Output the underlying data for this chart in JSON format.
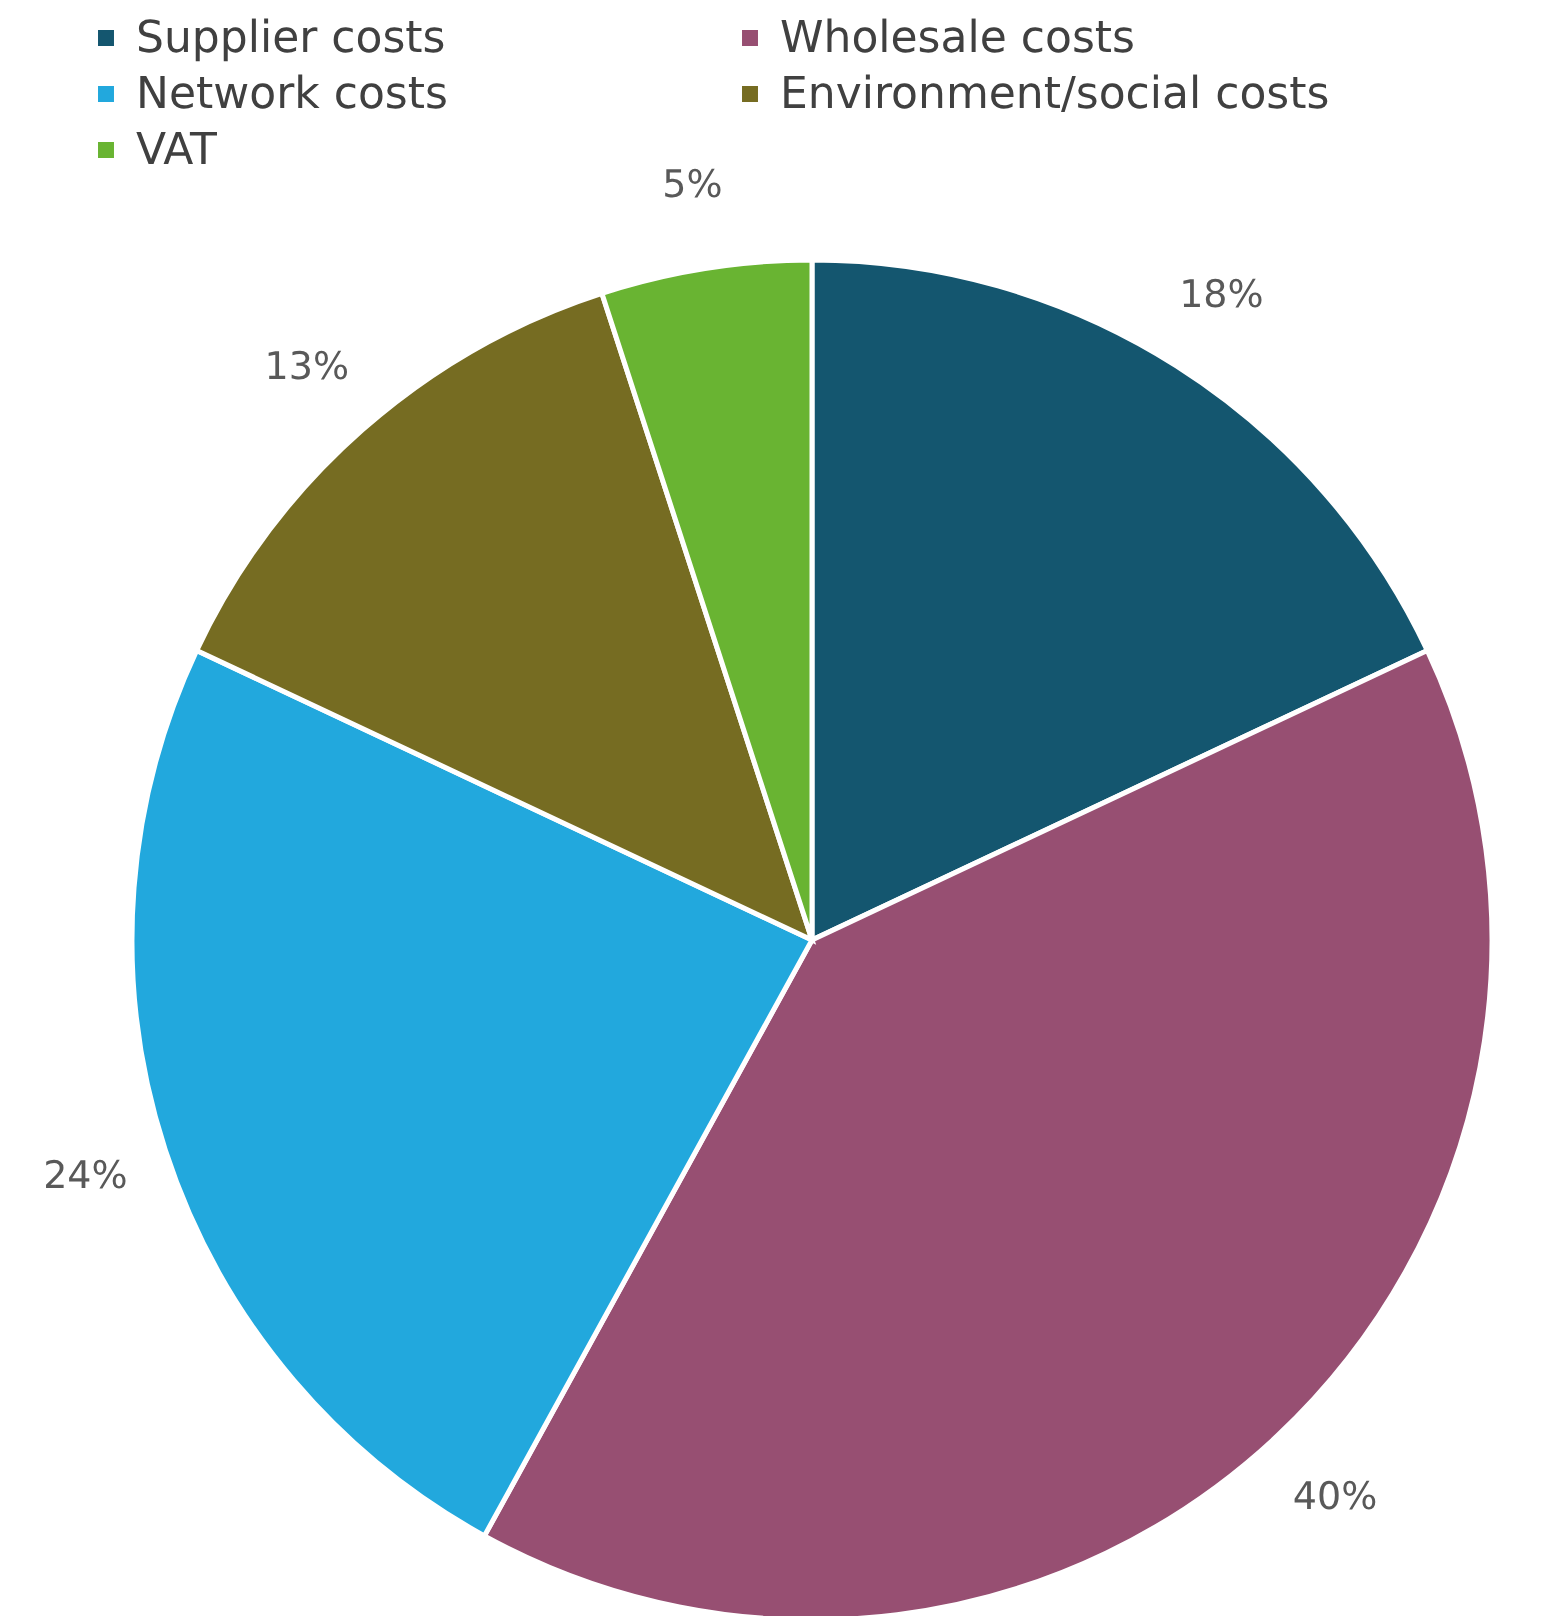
{
  "chart_data": {
    "type": "pie",
    "categories": [
      "Supplier costs",
      "Wholesale costs",
      "Network costs",
      "Environment/social costs",
      "VAT"
    ],
    "values": [
      18,
      40,
      24,
      13,
      5
    ],
    "colors": [
      "#14566f",
      "#974f72",
      "#22a8dd",
      "#766c22",
      "#69b432"
    ],
    "value_labels": [
      "18%",
      "40%",
      "24%",
      "13%",
      "5%"
    ],
    "legend": "top"
  }
}
